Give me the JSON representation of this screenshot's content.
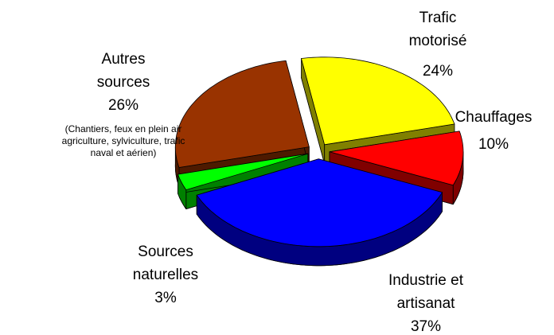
{
  "chart_data": {
    "type": "pie",
    "categories": [
      "Trafic motorisé",
      "Chauffages",
      "Industrie et artisanat",
      "Sources naturelles",
      "Autres sources"
    ],
    "values": [
      24,
      10,
      37,
      3,
      26
    ],
    "value_labels": [
      "24%",
      "10%",
      "37%",
      "3%",
      "26%"
    ],
    "colors": [
      "#ffff00",
      "#ff0000",
      "#0000ff",
      "#00ff00",
      "#993300"
    ],
    "annotations": [
      {
        "category": "Autres sources",
        "text": "(Chantiers, feux en plein air agriculture, sylviculture, trafic naval et aérien)"
      }
    ]
  }
}
